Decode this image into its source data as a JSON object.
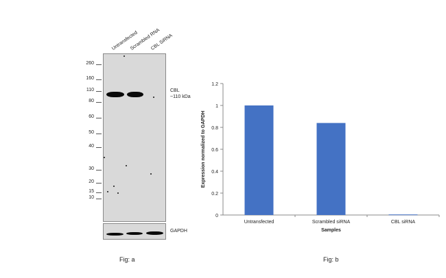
{
  "panel_a": {
    "lanes": [
      "Untransfected",
      "Scrambled RNA",
      "CBL SiRNA"
    ],
    "mw_markers": [
      "260",
      "160",
      "110",
      "80",
      "60",
      "50",
      "40",
      "30",
      "20",
      "15",
      "10"
    ],
    "band_label_line1": "CBL",
    "band_label_line2": "~110 kDa",
    "loading_label": "GAPDH",
    "caption": "Fig: a"
  },
  "panel_b": {
    "caption": "Fig: b"
  },
  "chart_data": {
    "type": "bar",
    "categories": [
      "Untransfected",
      "Scrambled siRNA",
      "CBL siRNA"
    ],
    "values": [
      1.0,
      0.84,
      0.005
    ],
    "xlabel": "Samples",
    "ylabel": "Expression normalized to GAPDH",
    "ylim": [
      0,
      1.2
    ],
    "yticks": [
      "0",
      "0.2",
      "0.4",
      "0.6",
      "0.8",
      "1",
      "1.2"
    ],
    "bar_color": "#4472c4"
  }
}
